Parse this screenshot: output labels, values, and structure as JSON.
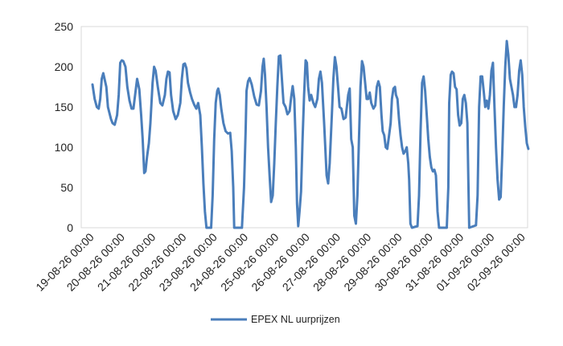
{
  "chart_data": {
    "type": "line",
    "title": "",
    "xlabel": "",
    "ylabel": "",
    "ylim": [
      0,
      250
    ],
    "yticks": [
      0,
      50,
      100,
      150,
      200,
      250
    ],
    "grid": false,
    "legend_position": "bottom",
    "x_tick_labels": [
      "19-08-26 00:00",
      "20-08-26 00:00",
      "21-08-26 00:00",
      "22-08-26 00:00",
      "23-08-26 00:00",
      "24-08-26 00:00",
      "25-08-26 00:00",
      "26-08-26 00:00",
      "27-08-26 00:00",
      "28-08-26 00:00",
      "29-08-26 00:00",
      "30-08-26 00:00",
      "31-08-26 00:00",
      "01-09-26 00:00",
      "02-09-26 00:00"
    ],
    "series": [
      {
        "name": "EPEX NL uurprijzen",
        "color": "#4a7ebb",
        "points": [
          [
            0,
            178
          ],
          [
            0.07,
            160
          ],
          [
            0.14,
            150
          ],
          [
            0.2,
            148
          ],
          [
            0.25,
            160
          ],
          [
            0.3,
            185
          ],
          [
            0.35,
            192
          ],
          [
            0.45,
            175
          ],
          [
            0.5,
            150
          ],
          [
            0.6,
            135
          ],
          [
            0.65,
            130
          ],
          [
            0.72,
            128
          ],
          [
            0.8,
            140
          ],
          [
            0.85,
            165
          ],
          [
            0.9,
            205
          ],
          [
            0.95,
            208
          ],
          [
            1.0,
            207
          ],
          [
            1.07,
            200
          ],
          [
            1.13,
            175
          ],
          [
            1.2,
            158
          ],
          [
            1.27,
            148
          ],
          [
            1.33,
            148
          ],
          [
            1.4,
            170
          ],
          [
            1.45,
            185
          ],
          [
            1.52,
            172
          ],
          [
            1.58,
            140
          ],
          [
            1.63,
            110
          ],
          [
            1.68,
            68
          ],
          [
            1.72,
            70
          ],
          [
            1.77,
            88
          ],
          [
            1.83,
            105
          ],
          [
            1.88,
            130
          ],
          [
            1.95,
            180
          ],
          [
            2.0,
            200
          ],
          [
            2.05,
            195
          ],
          [
            2.12,
            175
          ],
          [
            2.2,
            155
          ],
          [
            2.27,
            152
          ],
          [
            2.35,
            165
          ],
          [
            2.4,
            185
          ],
          [
            2.45,
            194
          ],
          [
            2.5,
            193
          ],
          [
            2.55,
            165
          ],
          [
            2.62,
            145
          ],
          [
            2.7,
            135
          ],
          [
            2.77,
            140
          ],
          [
            2.85,
            155
          ],
          [
            2.9,
            185
          ],
          [
            2.95,
            203
          ],
          [
            3.0,
            204
          ],
          [
            3.05,
            198
          ],
          [
            3.1,
            180
          ],
          [
            3.17,
            168
          ],
          [
            3.23,
            160
          ],
          [
            3.3,
            153
          ],
          [
            3.37,
            148
          ],
          [
            3.43,
            155
          ],
          [
            3.5,
            140
          ],
          [
            3.55,
            100
          ],
          [
            3.6,
            55
          ],
          [
            3.65,
            20
          ],
          [
            3.7,
            0
          ],
          [
            3.85,
            0
          ],
          [
            3.9,
            40
          ],
          [
            3.95,
            110
          ],
          [
            4.0,
            155
          ],
          [
            4.05,
            170
          ],
          [
            4.08,
            173
          ],
          [
            4.13,
            165
          ],
          [
            4.18,
            148
          ],
          [
            4.25,
            130
          ],
          [
            4.32,
            120
          ],
          [
            4.4,
            117
          ],
          [
            4.47,
            118
          ],
          [
            4.52,
            95
          ],
          [
            4.57,
            50
          ],
          [
            4.6,
            0
          ],
          [
            4.85,
            0
          ],
          [
            4.92,
            50
          ],
          [
            4.97,
            120
          ],
          [
            5.0,
            170
          ],
          [
            5.05,
            182
          ],
          [
            5.1,
            186
          ],
          [
            5.17,
            178
          ],
          [
            5.25,
            163
          ],
          [
            5.33,
            153
          ],
          [
            5.4,
            152
          ],
          [
            5.47,
            170
          ],
          [
            5.52,
            200
          ],
          [
            5.56,
            210
          ],
          [
            5.6,
            190
          ],
          [
            5.65,
            150
          ],
          [
            5.7,
            100
          ],
          [
            5.75,
            65
          ],
          [
            5.8,
            32
          ],
          [
            5.85,
            40
          ],
          [
            5.9,
            80
          ],
          [
            5.95,
            130
          ],
          [
            6.0,
            175
          ],
          [
            6.05,
            213
          ],
          [
            6.1,
            214
          ],
          [
            6.15,
            185
          ],
          [
            6.2,
            155
          ],
          [
            6.27,
            150
          ],
          [
            6.33,
            141
          ],
          [
            6.4,
            145
          ],
          [
            6.45,
            162
          ],
          [
            6.5,
            176
          ],
          [
            6.55,
            160
          ],
          [
            6.6,
            100
          ],
          [
            6.64,
            30
          ],
          [
            6.68,
            2
          ],
          [
            6.72,
            20
          ],
          [
            6.77,
            45
          ],
          [
            6.82,
            110
          ],
          [
            6.87,
            165
          ],
          [
            6.92,
            208
          ],
          [
            6.96,
            205
          ],
          [
            7.0,
            175
          ],
          [
            7.05,
            158
          ],
          [
            7.1,
            165
          ],
          [
            7.17,
            155
          ],
          [
            7.23,
            150
          ],
          [
            7.3,
            160
          ],
          [
            7.35,
            185
          ],
          [
            7.4,
            194
          ],
          [
            7.45,
            180
          ],
          [
            7.52,
            130
          ],
          [
            7.57,
            90
          ],
          [
            7.6,
            65
          ],
          [
            7.65,
            55
          ],
          [
            7.7,
            80
          ],
          [
            7.77,
            140
          ],
          [
            7.82,
            185
          ],
          [
            7.87,
            212
          ],
          [
            7.92,
            200
          ],
          [
            7.97,
            175
          ],
          [
            8.02,
            150
          ],
          [
            8.08,
            148
          ],
          [
            8.15,
            135
          ],
          [
            8.22,
            137
          ],
          [
            8.3,
            165
          ],
          [
            8.35,
            173
          ],
          [
            8.4,
            110
          ],
          [
            8.45,
            100
          ],
          [
            8.5,
            15
          ],
          [
            8.55,
            5
          ],
          [
            8.6,
            40
          ],
          [
            8.65,
            110
          ],
          [
            8.7,
            175
          ],
          [
            8.75,
            207
          ],
          [
            8.8,
            200
          ],
          [
            8.85,
            180
          ],
          [
            8.9,
            160
          ],
          [
            8.95,
            160
          ],
          [
            9.0,
            168
          ],
          [
            9.05,
            155
          ],
          [
            9.12,
            148
          ],
          [
            9.18,
            152
          ],
          [
            9.23,
            175
          ],
          [
            9.28,
            182
          ],
          [
            9.33,
            175
          ],
          [
            9.38,
            140
          ],
          [
            9.42,
            120
          ],
          [
            9.47,
            115
          ],
          [
            9.52,
            100
          ],
          [
            9.57,
            98
          ],
          [
            9.62,
            112
          ],
          [
            9.68,
            130
          ],
          [
            9.72,
            160
          ],
          [
            9.77,
            173
          ],
          [
            9.82,
            175
          ],
          [
            9.85,
            165
          ],
          [
            9.9,
            160
          ],
          [
            9.95,
            135
          ],
          [
            10.0,
            115
          ],
          [
            10.05,
            100
          ],
          [
            10.1,
            92
          ],
          [
            10.15,
            95
          ],
          [
            10.2,
            100
          ],
          [
            10.25,
            80
          ],
          [
            10.28,
            60
          ],
          [
            10.32,
            5
          ],
          [
            10.37,
            0
          ],
          [
            10.55,
            2
          ],
          [
            10.6,
            40
          ],
          [
            10.65,
            120
          ],
          [
            10.7,
            180
          ],
          [
            10.75,
            188
          ],
          [
            10.8,
            170
          ],
          [
            10.85,
            140
          ],
          [
            10.9,
            110
          ],
          [
            10.95,
            88
          ],
          [
            11.0,
            75
          ],
          [
            11.05,
            70
          ],
          [
            11.1,
            72
          ],
          [
            11.15,
            65
          ],
          [
            11.2,
            20
          ],
          [
            11.25,
            0
          ],
          [
            11.5,
            0
          ],
          [
            11.55,
            50
          ],
          [
            11.58,
            155
          ],
          [
            11.63,
            190
          ],
          [
            11.67,
            194
          ],
          [
            11.72,
            192
          ],
          [
            11.77,
            175
          ],
          [
            11.82,
            172
          ],
          [
            11.87,
            140
          ],
          [
            11.92,
            127
          ],
          [
            11.97,
            130
          ],
          [
            12.02,
            160
          ],
          [
            12.07,
            165
          ],
          [
            12.12,
            155
          ],
          [
            12.17,
            130
          ],
          [
            12.2,
            60
          ],
          [
            12.23,
            0
          ],
          [
            12.45,
            3
          ],
          [
            12.5,
            40
          ],
          [
            12.55,
            150
          ],
          [
            12.6,
            188
          ],
          [
            12.65,
            188
          ],
          [
            12.7,
            170
          ],
          [
            12.75,
            150
          ],
          [
            12.8,
            158
          ],
          [
            12.85,
            148
          ],
          [
            12.9,
            165
          ],
          [
            12.95,
            195
          ],
          [
            13.0,
            205
          ],
          [
            13.05,
            150
          ],
          [
            13.1,
            100
          ],
          [
            13.15,
            60
          ],
          [
            13.2,
            35
          ],
          [
            13.25,
            38
          ],
          [
            13.3,
            90
          ],
          [
            13.35,
            150
          ],
          [
            13.4,
            200
          ],
          [
            13.45,
            232
          ],
          [
            13.5,
            215
          ],
          [
            13.55,
            185
          ],
          [
            13.6,
            175
          ],
          [
            13.65,
            165
          ],
          [
            13.7,
            150
          ],
          [
            13.75,
            150
          ],
          [
            13.8,
            165
          ],
          [
            13.85,
            195
          ],
          [
            13.9,
            208
          ],
          [
            13.95,
            190
          ],
          [
            14.0,
            150
          ],
          [
            14.05,
            125
          ],
          [
            14.1,
            105
          ],
          [
            14.15,
            98
          ]
        ]
      }
    ]
  }
}
